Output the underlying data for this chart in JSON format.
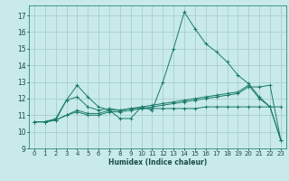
{
  "title": "",
  "xlabel": "Humidex (Indice chaleur)",
  "bg_color": "#c8eaea",
  "grid_color": "#aacece",
  "line_color": "#1a7a6a",
  "xlim": [
    -0.5,
    23.5
  ],
  "ylim": [
    9,
    17.6
  ],
  "yticks": [
    9,
    10,
    11,
    12,
    13,
    14,
    15,
    16,
    17
  ],
  "xticks": [
    0,
    1,
    2,
    3,
    4,
    5,
    6,
    7,
    8,
    9,
    10,
    11,
    12,
    13,
    14,
    15,
    16,
    17,
    18,
    19,
    20,
    21,
    22,
    23
  ],
  "series": [
    {
      "x": [
        0,
        1,
        2,
        3,
        4,
        5,
        6,
        7,
        8,
        9,
        10,
        11,
        12,
        13,
        14,
        15,
        16,
        17,
        18,
        19,
        20,
        21,
        22,
        23
      ],
      "y": [
        10.6,
        10.6,
        10.7,
        11.9,
        12.8,
        12.1,
        11.5,
        11.3,
        10.8,
        10.8,
        11.5,
        11.3,
        13.0,
        15.0,
        17.2,
        16.2,
        15.3,
        14.8,
        14.2,
        13.4,
        12.9,
        12.1,
        11.5,
        9.5
      ]
    },
    {
      "x": [
        0,
        1,
        2,
        3,
        4,
        5,
        6,
        7,
        8,
        9,
        10,
        11,
        12,
        13,
        14,
        15,
        16,
        17,
        18,
        19,
        20,
        21,
        22,
        23
      ],
      "y": [
        10.6,
        10.6,
        10.8,
        11.9,
        12.1,
        11.5,
        11.3,
        11.4,
        11.3,
        11.4,
        11.4,
        11.4,
        11.4,
        11.4,
        11.4,
        11.4,
        11.5,
        11.5,
        11.5,
        11.5,
        11.5,
        11.5,
        11.5,
        11.5
      ]
    },
    {
      "x": [
        0,
        1,
        2,
        3,
        4,
        5,
        6,
        7,
        8,
        9,
        10,
        11,
        12,
        13,
        14,
        15,
        16,
        17,
        18,
        19,
        20,
        21,
        22,
        23
      ],
      "y": [
        10.6,
        10.6,
        10.7,
        11.0,
        11.3,
        11.1,
        11.1,
        11.3,
        11.3,
        11.4,
        11.5,
        11.6,
        11.7,
        11.8,
        11.9,
        12.0,
        12.1,
        12.2,
        12.3,
        12.4,
        12.8,
        12.0,
        11.5,
        9.5
      ]
    },
    {
      "x": [
        0,
        1,
        2,
        3,
        4,
        5,
        6,
        7,
        8,
        9,
        10,
        11,
        12,
        13,
        14,
        15,
        16,
        17,
        18,
        19,
        20,
        21,
        22,
        23
      ],
      "y": [
        10.6,
        10.6,
        10.7,
        11.0,
        11.2,
        11.0,
        11.0,
        11.2,
        11.2,
        11.3,
        11.4,
        11.5,
        11.6,
        11.7,
        11.8,
        11.9,
        12.0,
        12.1,
        12.2,
        12.3,
        12.7,
        12.7,
        12.8,
        9.5
      ]
    }
  ]
}
